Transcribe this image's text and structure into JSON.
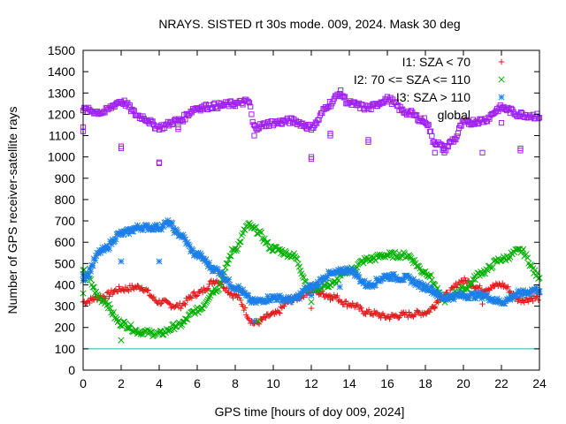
{
  "chart_data": {
    "type": "scatter",
    "title": "NRAYS. SISTED rt 30s mode. 009, 2024. Mask 30 deg",
    "xlabel": "GPS time [hours of doy 009, 2024]",
    "ylabel": "Number of GPS receiver-satellite rays",
    "xlim": [
      0,
      24
    ],
    "ylim": [
      0,
      1500
    ],
    "x_ticks": [
      "0",
      "2",
      "4",
      "6",
      "8",
      "10",
      "12",
      "14",
      "16",
      "18",
      "20",
      "22",
      "24"
    ],
    "y_ticks": [
      "0",
      "100",
      "200",
      "300",
      "400",
      "500",
      "600",
      "700",
      "800",
      "900",
      "1000",
      "1100",
      "1200",
      "1300",
      "1400",
      "1500"
    ],
    "grid": false,
    "legend_position": "top-right",
    "threshold_line": {
      "y": 100,
      "color": "#00bfbf"
    },
    "series": [
      {
        "name": "I1: SZA < 70",
        "marker": "+",
        "color": "#e41a1c",
        "points": [
          [
            0,
            320
          ],
          [
            1,
            345
          ],
          [
            2,
            380
          ],
          [
            3,
            390
          ],
          [
            4,
            320
          ],
          [
            5,
            300
          ],
          [
            6,
            360
          ],
          [
            7,
            420
          ],
          [
            8,
            350
          ],
          [
            9,
            220
          ],
          [
            10,
            260
          ],
          [
            11,
            330
          ],
          [
            12,
            370
          ],
          [
            13,
            350
          ],
          [
            14,
            310
          ],
          [
            15,
            270
          ],
          [
            16,
            250
          ],
          [
            17,
            260
          ],
          [
            18,
            270
          ],
          [
            19,
            350
          ],
          [
            20,
            420
          ],
          [
            21,
            380
          ],
          [
            22,
            400
          ],
          [
            23,
            330
          ],
          [
            24,
            340
          ]
        ]
      },
      {
        "name": "I2: 70 <= SZA <= 110",
        "marker": "x",
        "color": "#00b000",
        "points": [
          [
            0,
            460
          ],
          [
            1,
            330
          ],
          [
            2,
            220
          ],
          [
            3,
            180
          ],
          [
            4,
            170
          ],
          [
            5,
            210
          ],
          [
            6,
            280
          ],
          [
            7,
            380
          ],
          [
            8,
            570
          ],
          [
            8.7,
            680
          ],
          [
            9,
            660
          ],
          [
            10,
            570
          ],
          [
            11,
            540
          ],
          [
            12,
            380
          ],
          [
            13,
            400
          ],
          [
            14,
            470
          ],
          [
            15,
            520
          ],
          [
            16,
            540
          ],
          [
            17,
            540
          ],
          [
            18,
            460
          ],
          [
            19,
            330
          ],
          [
            20,
            380
          ],
          [
            21,
            460
          ],
          [
            22,
            520
          ],
          [
            23,
            560
          ],
          [
            24,
            440
          ]
        ]
      },
      {
        "name": "I3: SZA > 110",
        "marker": "*",
        "color": "#1c7fe8",
        "points": [
          [
            0,
            430
          ],
          [
            1,
            560
          ],
          [
            2,
            640
          ],
          [
            3,
            670
          ],
          [
            4,
            670
          ],
          [
            4.5,
            690
          ],
          [
            5,
            640
          ],
          [
            6,
            540
          ],
          [
            7,
            470
          ],
          [
            8,
            390
          ],
          [
            9,
            320
          ],
          [
            10,
            340
          ],
          [
            11,
            330
          ],
          [
            12,
            390
          ],
          [
            13,
            450
          ],
          [
            14,
            470
          ],
          [
            15,
            400
          ],
          [
            16,
            440
          ],
          [
            17,
            430
          ],
          [
            18,
            390
          ],
          [
            19,
            340
          ],
          [
            20,
            350
          ],
          [
            21,
            350
          ],
          [
            22,
            320
          ],
          [
            23,
            360
          ],
          [
            24,
            380
          ]
        ]
      },
      {
        "name": "global",
        "marker": "square",
        "color": "#a020f0",
        "points": [
          [
            0,
            1220
          ],
          [
            1,
            1210
          ],
          [
            2,
            1260
          ],
          [
            3,
            1190
          ],
          [
            4,
            1140
          ],
          [
            5,
            1170
          ],
          [
            6,
            1230
          ],
          [
            7,
            1240
          ],
          [
            8,
            1250
          ],
          [
            8.7,
            1260
          ],
          [
            9,
            1140
          ],
          [
            10,
            1160
          ],
          [
            11,
            1170
          ],
          [
            12,
            1140
          ],
          [
            13,
            1250
          ],
          [
            13.5,
            1300
          ],
          [
            14,
            1250
          ],
          [
            15,
            1230
          ],
          [
            16,
            1270
          ],
          [
            17,
            1210
          ],
          [
            18,
            1170
          ],
          [
            18.5,
            1070
          ],
          [
            19,
            1040
          ],
          [
            19.5,
            1080
          ],
          [
            20,
            1160
          ],
          [
            21,
            1170
          ],
          [
            22,
            1230
          ],
          [
            23,
            1200
          ],
          [
            24,
            1190
          ]
        ]
      }
    ],
    "outliers": {
      "I1: SZA < 70": [
        [
          9,
          220
        ],
        [
          12,
          290
        ],
        [
          12.5,
          360
        ],
        [
          13,
          330
        ],
        [
          18.5,
          290
        ],
        [
          21,
          310
        ]
      ],
      "I2: 70 <= SZA <= 110": [
        [
          0,
          360
        ],
        [
          2,
          140
        ],
        [
          12,
          320
        ],
        [
          9.2,
          230
        ]
      ],
      "I3: SZA > 110": [
        [
          0,
          450
        ],
        [
          2,
          510
        ],
        [
          4,
          510
        ],
        [
          9,
          230
        ],
        [
          12,
          350
        ],
        [
          13.5,
          390
        ]
      ],
      "global": [
        [
          0,
          1140
        ],
        [
          0,
          1120
        ],
        [
          2,
          1050
        ],
        [
          2,
          1040
        ],
        [
          4,
          975
        ],
        [
          4,
          970
        ],
        [
          5,
          1140
        ],
        [
          5,
          1130
        ],
        [
          9,
          1100
        ],
        [
          12,
          1000
        ],
        [
          12,
          990
        ],
        [
          13,
          1110
        ],
        [
          13,
          1100
        ],
        [
          15,
          1080
        ],
        [
          15,
          1070
        ],
        [
          18.5,
          1020
        ],
        [
          19,
          1030
        ],
        [
          19,
          1020
        ],
        [
          21,
          1020
        ],
        [
          22,
          1160
        ],
        [
          23,
          1040
        ],
        [
          23,
          1030
        ]
      ]
    }
  }
}
